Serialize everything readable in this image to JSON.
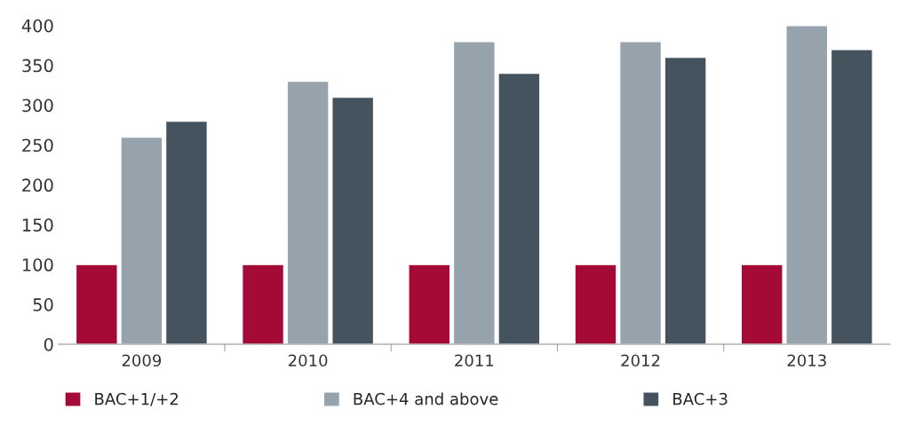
{
  "chart_data": {
    "type": "bar",
    "categories": [
      "2009",
      "2010",
      "2011",
      "2012",
      "2013"
    ],
    "series": [
      {
        "name": "BAC+1/+2",
        "color": "#a50a36",
        "values": [
          100,
          100,
          100,
          100,
          100
        ]
      },
      {
        "name": "BAC+4 and above",
        "color": "#96a3ac",
        "values": [
          260,
          330,
          380,
          380,
          400
        ]
      },
      {
        "name": "BAC+3",
        "color": "#44535e",
        "values": [
          280,
          310,
          340,
          360,
          370
        ]
      }
    ],
    "ylim": [
      0,
      400
    ],
    "yticks": [
      0,
      50,
      100,
      150,
      200,
      250,
      300,
      350,
      400
    ],
    "grid": false,
    "legend": "bottom"
  }
}
